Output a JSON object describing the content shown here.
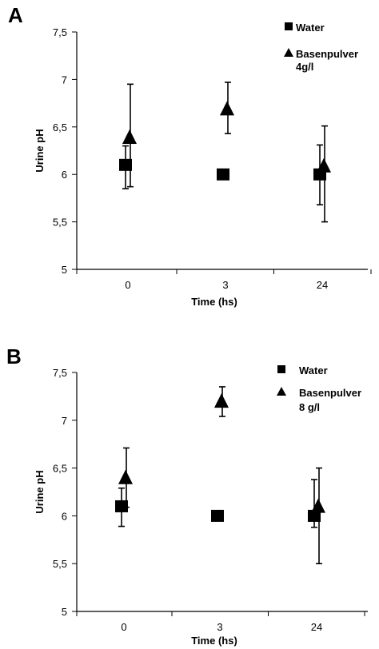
{
  "chart_data": [
    {
      "panel_label": "A",
      "type": "scatter",
      "categories": [
        "0",
        "3",
        "24"
      ],
      "xlabel": "Time (hs)",
      "ylabel": "Urine pH",
      "ylim": [
        5,
        7.5
      ],
      "yticks": [
        "5",
        "5,5",
        "6",
        "6,5",
        "7",
        "7,5"
      ],
      "grid": false,
      "legend_position": "top-right",
      "series": [
        {
          "name": "Water",
          "marker": "square",
          "values": [
            6.1,
            6.0,
            6.0
          ],
          "err_low": [
            5.85,
            null,
            5.68
          ],
          "err_high": [
            6.3,
            null,
            6.31
          ],
          "color": "#000000"
        },
        {
          "name": "Basenpulver\n4g/l",
          "marker": "triangle",
          "values": [
            6.38,
            6.68,
            6.08
          ],
          "err_low": [
            5.87,
            6.43,
            5.5
          ],
          "err_high": [
            6.95,
            6.97,
            6.51
          ],
          "color": "#000000"
        }
      ]
    },
    {
      "panel_label": "B",
      "type": "scatter",
      "categories": [
        "0",
        "3",
        "24"
      ],
      "xlabel": "Time (hs)",
      "ylabel": "Urine pH",
      "ylim": [
        5,
        7.5
      ],
      "yticks": [
        "5",
        "5,5",
        "6",
        "6,5",
        "7",
        "7,5"
      ],
      "grid": false,
      "legend_position": "top-right",
      "series": [
        {
          "name": "Water",
          "marker": "square",
          "values": [
            6.1,
            6.0,
            6.0
          ],
          "err_low": [
            5.89,
            null,
            5.88
          ],
          "err_high": [
            6.29,
            null,
            6.38
          ],
          "color": "#000000"
        },
        {
          "name": " Basenpulver\n8 g/l",
          "marker": "triangle",
          "values": [
            6.39,
            7.19,
            6.09
          ],
          "err_low": [
            6.09,
            7.04,
            5.5
          ],
          "err_high": [
            6.71,
            7.35,
            6.5
          ],
          "color": "#000000"
        }
      ]
    }
  ]
}
